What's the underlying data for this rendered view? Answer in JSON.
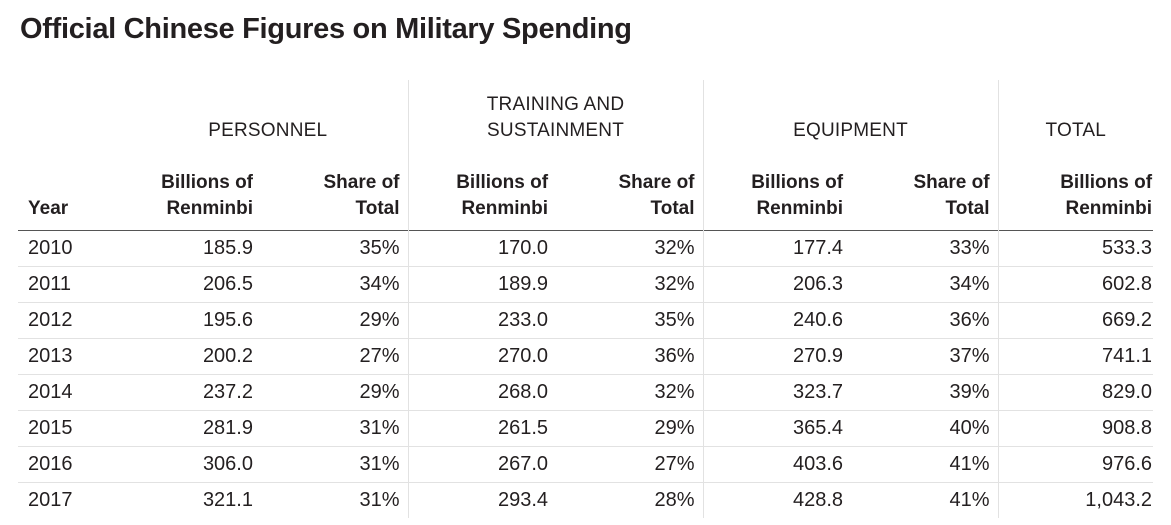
{
  "title": "Official Chinese Figures on Military Spending",
  "table": {
    "group_headers": [
      "PERSONNEL",
      "TRAINING AND SUSTAINMENT",
      "EQUIPMENT",
      "TOTAL"
    ],
    "group_header_lines": {
      "training": [
        "TRAINING AND",
        "SUSTAINMENT"
      ]
    },
    "column_headers": {
      "year": "Year",
      "billions_line1": "Billions of",
      "billions_line2": "Renminbi",
      "share_line1": "Share of",
      "share_line2": "Total"
    },
    "rows": [
      {
        "year": "2010",
        "personnel_b": "185.9",
        "personnel_s": "35%",
        "training_b": "170.0",
        "training_s": "32%",
        "equipment_b": "177.4",
        "equipment_s": "33%",
        "total_b": "533.3"
      },
      {
        "year": "2011",
        "personnel_b": "206.5",
        "personnel_s": "34%",
        "training_b": "189.9",
        "training_s": "32%",
        "equipment_b": "206.3",
        "equipment_s": "34%",
        "total_b": "602.8"
      },
      {
        "year": "2012",
        "personnel_b": "195.6",
        "personnel_s": "29%",
        "training_b": "233.0",
        "training_s": "35%",
        "equipment_b": "240.6",
        "equipment_s": "36%",
        "total_b": "669.2"
      },
      {
        "year": "2013",
        "personnel_b": "200.2",
        "personnel_s": "27%",
        "training_b": "270.0",
        "training_s": "36%",
        "equipment_b": "270.9",
        "equipment_s": "37%",
        "total_b": "741.1"
      },
      {
        "year": "2014",
        "personnel_b": "237.2",
        "personnel_s": "29%",
        "training_b": "268.0",
        "training_s": "32%",
        "equipment_b": "323.7",
        "equipment_s": "39%",
        "total_b": "829.0"
      },
      {
        "year": "2015",
        "personnel_b": "281.9",
        "personnel_s": "31%",
        "training_b": "261.5",
        "training_s": "29%",
        "equipment_b": "365.4",
        "equipment_s": "40%",
        "total_b": "908.8"
      },
      {
        "year": "2016",
        "personnel_b": "306.0",
        "personnel_s": "31%",
        "training_b": "267.0",
        "training_s": "27%",
        "equipment_b": "403.6",
        "equipment_s": "41%",
        "total_b": "976.6"
      },
      {
        "year": "2017",
        "personnel_b": "321.1",
        "personnel_s": "31%",
        "training_b": "293.4",
        "training_s": "28%",
        "equipment_b": "428.8",
        "equipment_s": "41%",
        "total_b": "1,043.2"
      }
    ]
  },
  "colors": {
    "text": "#231f20",
    "header_rule": "#555555",
    "row_rule": "#e2e2e2"
  }
}
